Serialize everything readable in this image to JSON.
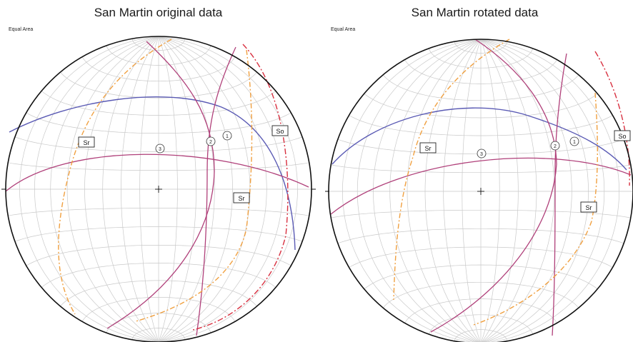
{
  "panels": [
    {
      "title": "San Martin original data",
      "projection": "Equal Area",
      "labels": [
        {
          "text": "Sr"
        },
        {
          "text": "Sr"
        },
        {
          "text": "So"
        }
      ],
      "intersections": [
        "1",
        "2",
        "3"
      ]
    },
    {
      "title": "San Martin rotated data",
      "projection": "Equal Area",
      "labels": [
        {
          "text": "Sr"
        },
        {
          "text": "Sr"
        },
        {
          "text": "So"
        }
      ],
      "intersections": [
        "1",
        "2",
        "3"
      ]
    }
  ],
  "colors": {
    "grid": "#c9c9c9",
    "outline": "#111111",
    "blue_great_circle": "#5a5ab4",
    "magenta_great_circle": "#b0407a",
    "orange_dashed": "#f0a040",
    "red_dashed": "#d83040"
  }
}
